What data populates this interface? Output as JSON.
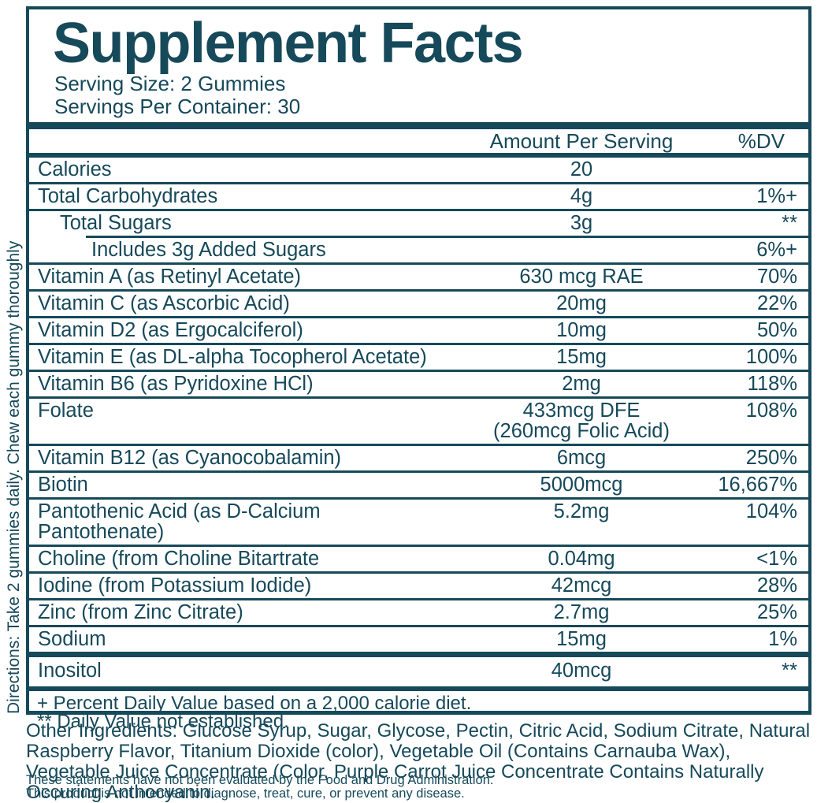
{
  "colors": {
    "teal": "#16495a"
  },
  "directions": "Directions: Take 2 gummies daily. Chew each gummy thoroughly",
  "label": {
    "title": "Supplement Facts",
    "serving_size": "Serving Size: 2 Gummies",
    "servings_per_container": "Servings Per Container: 30",
    "columns": {
      "amount": "Amount Per Serving",
      "dv": "%DV"
    },
    "rows": [
      {
        "name": "Calories",
        "amount": "20",
        "dv": "",
        "indent": 0
      },
      {
        "name": "Total Carbohydrates",
        "amount": "4g",
        "dv": "1%+",
        "indent": 0
      },
      {
        "name": "Total Sugars",
        "amount": "3g",
        "dv": "**",
        "indent": 1
      },
      {
        "name": "Includes 3g Added Sugars",
        "amount": "",
        "dv": "6%+",
        "indent": 2,
        "inset_rule": true
      },
      {
        "name": "Vitamin A (as Retinyl Acetate)",
        "amount": "630 mcg RAE",
        "dv": "70%",
        "indent": 0
      },
      {
        "name": "Vitamin C (as Ascorbic Acid)",
        "amount": "20mg",
        "dv": "22%",
        "indent": 0
      },
      {
        "name": "Vitamin D2 (as Ergocalciferol)",
        "amount": "10mg",
        "dv": "50%",
        "indent": 0
      },
      {
        "name": "Vitamin E (as DL-alpha Tocopherol Acetate)",
        "amount": "15mg",
        "dv": "100%",
        "indent": 0
      },
      {
        "name": "Vitamin B6 (as Pyridoxine HCl)",
        "amount": "2mg",
        "dv": "118%",
        "indent": 0
      },
      {
        "name": "Folate",
        "amount": "433mcg DFE",
        "amount2": "(260mcg Folic Acid)",
        "dv": "108%",
        "indent": 0
      },
      {
        "name": "Vitamin B12 (as Cyanocobalamin)",
        "amount": "6mcg",
        "dv": "250%",
        "indent": 0
      },
      {
        "name": "Biotin",
        "amount": "5000mcg",
        "dv": "16,667%",
        "indent": 0
      },
      {
        "name": "Pantothenic Acid (as D-Calcium Pantothenate)",
        "amount": "5.2mg",
        "dv": "104%",
        "indent": 0
      },
      {
        "name": "Choline (from Choline Bitartrate",
        "amount": "0.04mg",
        "dv": "<1%",
        "indent": 0
      },
      {
        "name": "Iodine (from Potassium Iodide)",
        "amount": "42mcg",
        "dv": "28%",
        "indent": 0
      },
      {
        "name": "Zinc (from Zinc Citrate)",
        "amount": "2.7mg",
        "dv": "25%",
        "indent": 0
      },
      {
        "name": "Sodium",
        "amount": "15mg",
        "dv": "1%",
        "indent": 0
      },
      {
        "name": "Inositol",
        "amount": "40mcg",
        "dv": "**",
        "indent": 0,
        "thick_top": true,
        "tall": true
      }
    ],
    "footnotes": [
      "+ Percent Daily Value based on a 2,000 calorie diet.",
      "** Daily Value not established."
    ]
  },
  "other_ingredients": "Other Ingredients: Glucose Syrup, Sugar, Glycose, Pectin, Citric Acid, Sodium Citrate, Natural Raspberry Flavor, Titanium Dioxide (color), Vegetable Oil (Contains Carnauba Wax), Vegetable Juice Concentrate (Color, Purple Carrot Juice Concentrate Contains Naturally Occuring Anthocyanin.",
  "disclaimers": [
    "These statements have not been evaluated by the Food and Drug Administration.",
    "This product is not intended to diagnose, treat, cure, or prevent any disease."
  ]
}
